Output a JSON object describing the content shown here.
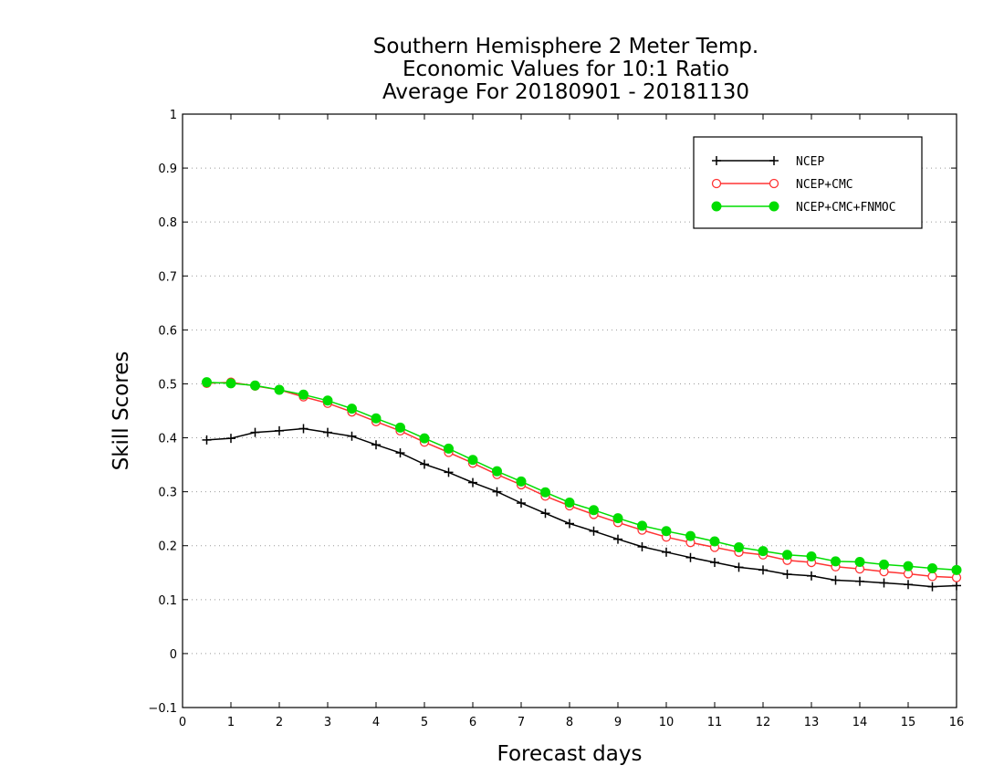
{
  "chart_data": {
    "type": "line",
    "title": [
      "Southern Hemisphere 2 Meter Temp.",
      "Economic Values for 10:1 Ratio",
      "Average For 20180901 - 20181130"
    ],
    "xlabel": "Forecast days",
    "ylabel": "Skill Scores",
    "xlim": [
      0,
      16
    ],
    "ylim": [
      -0.1,
      1
    ],
    "xticks": [
      "0",
      "1",
      "2",
      "3",
      "4",
      "5",
      "6",
      "7",
      "8",
      "9",
      "10",
      "11",
      "12",
      "13",
      "14",
      "15",
      "16"
    ],
    "yticks": [
      "−0.1",
      "0",
      "0.1",
      "0.2",
      "0.3",
      "0.4",
      "0.5",
      "0.6",
      "0.7",
      "0.8",
      "0.9",
      "1"
    ],
    "grid": "horizontal dotted",
    "legend_position": "top-right",
    "x": [
      0.5,
      1,
      1.5,
      2,
      2.5,
      3,
      3.5,
      4,
      4.5,
      5,
      5.5,
      6,
      6.5,
      7,
      7.5,
      8,
      8.5,
      9,
      9.5,
      10,
      10.5,
      11,
      11.5,
      12,
      12.5,
      13,
      13.5,
      14,
      14.5,
      15,
      15.5,
      16
    ],
    "series": [
      {
        "name": "NCEP",
        "color": "#000000",
        "marker": "plus",
        "values": [
          0.396,
          0.399,
          0.41,
          0.413,
          0.417,
          0.41,
          0.403,
          0.387,
          0.372,
          0.351,
          0.336,
          0.317,
          0.3,
          0.279,
          0.26,
          0.241,
          0.227,
          0.212,
          0.198,
          0.188,
          0.178,
          0.169,
          0.16,
          0.155,
          0.147,
          0.144,
          0.136,
          0.134,
          0.131,
          0.128,
          0.124,
          0.126
        ]
      },
      {
        "name": "NCEP+CMC",
        "color": "#ff3333",
        "marker": "open-circle",
        "values": [
          0.501,
          0.503,
          0.496,
          0.489,
          0.476,
          0.464,
          0.448,
          0.43,
          0.413,
          0.392,
          0.373,
          0.353,
          0.332,
          0.313,
          0.292,
          0.274,
          0.258,
          0.243,
          0.229,
          0.216,
          0.206,
          0.197,
          0.188,
          0.183,
          0.173,
          0.169,
          0.161,
          0.157,
          0.152,
          0.148,
          0.143,
          0.141
        ]
      },
      {
        "name": "NCEP+CMC+FNMOC",
        "color": "#00dd00",
        "marker": "filled-circle",
        "values": [
          0.503,
          0.501,
          0.497,
          0.489,
          0.48,
          0.469,
          0.454,
          0.436,
          0.419,
          0.399,
          0.38,
          0.359,
          0.338,
          0.319,
          0.299,
          0.28,
          0.266,
          0.251,
          0.237,
          0.227,
          0.218,
          0.208,
          0.197,
          0.19,
          0.183,
          0.18,
          0.171,
          0.17,
          0.165,
          0.162,
          0.158,
          0.155
        ]
      }
    ]
  }
}
